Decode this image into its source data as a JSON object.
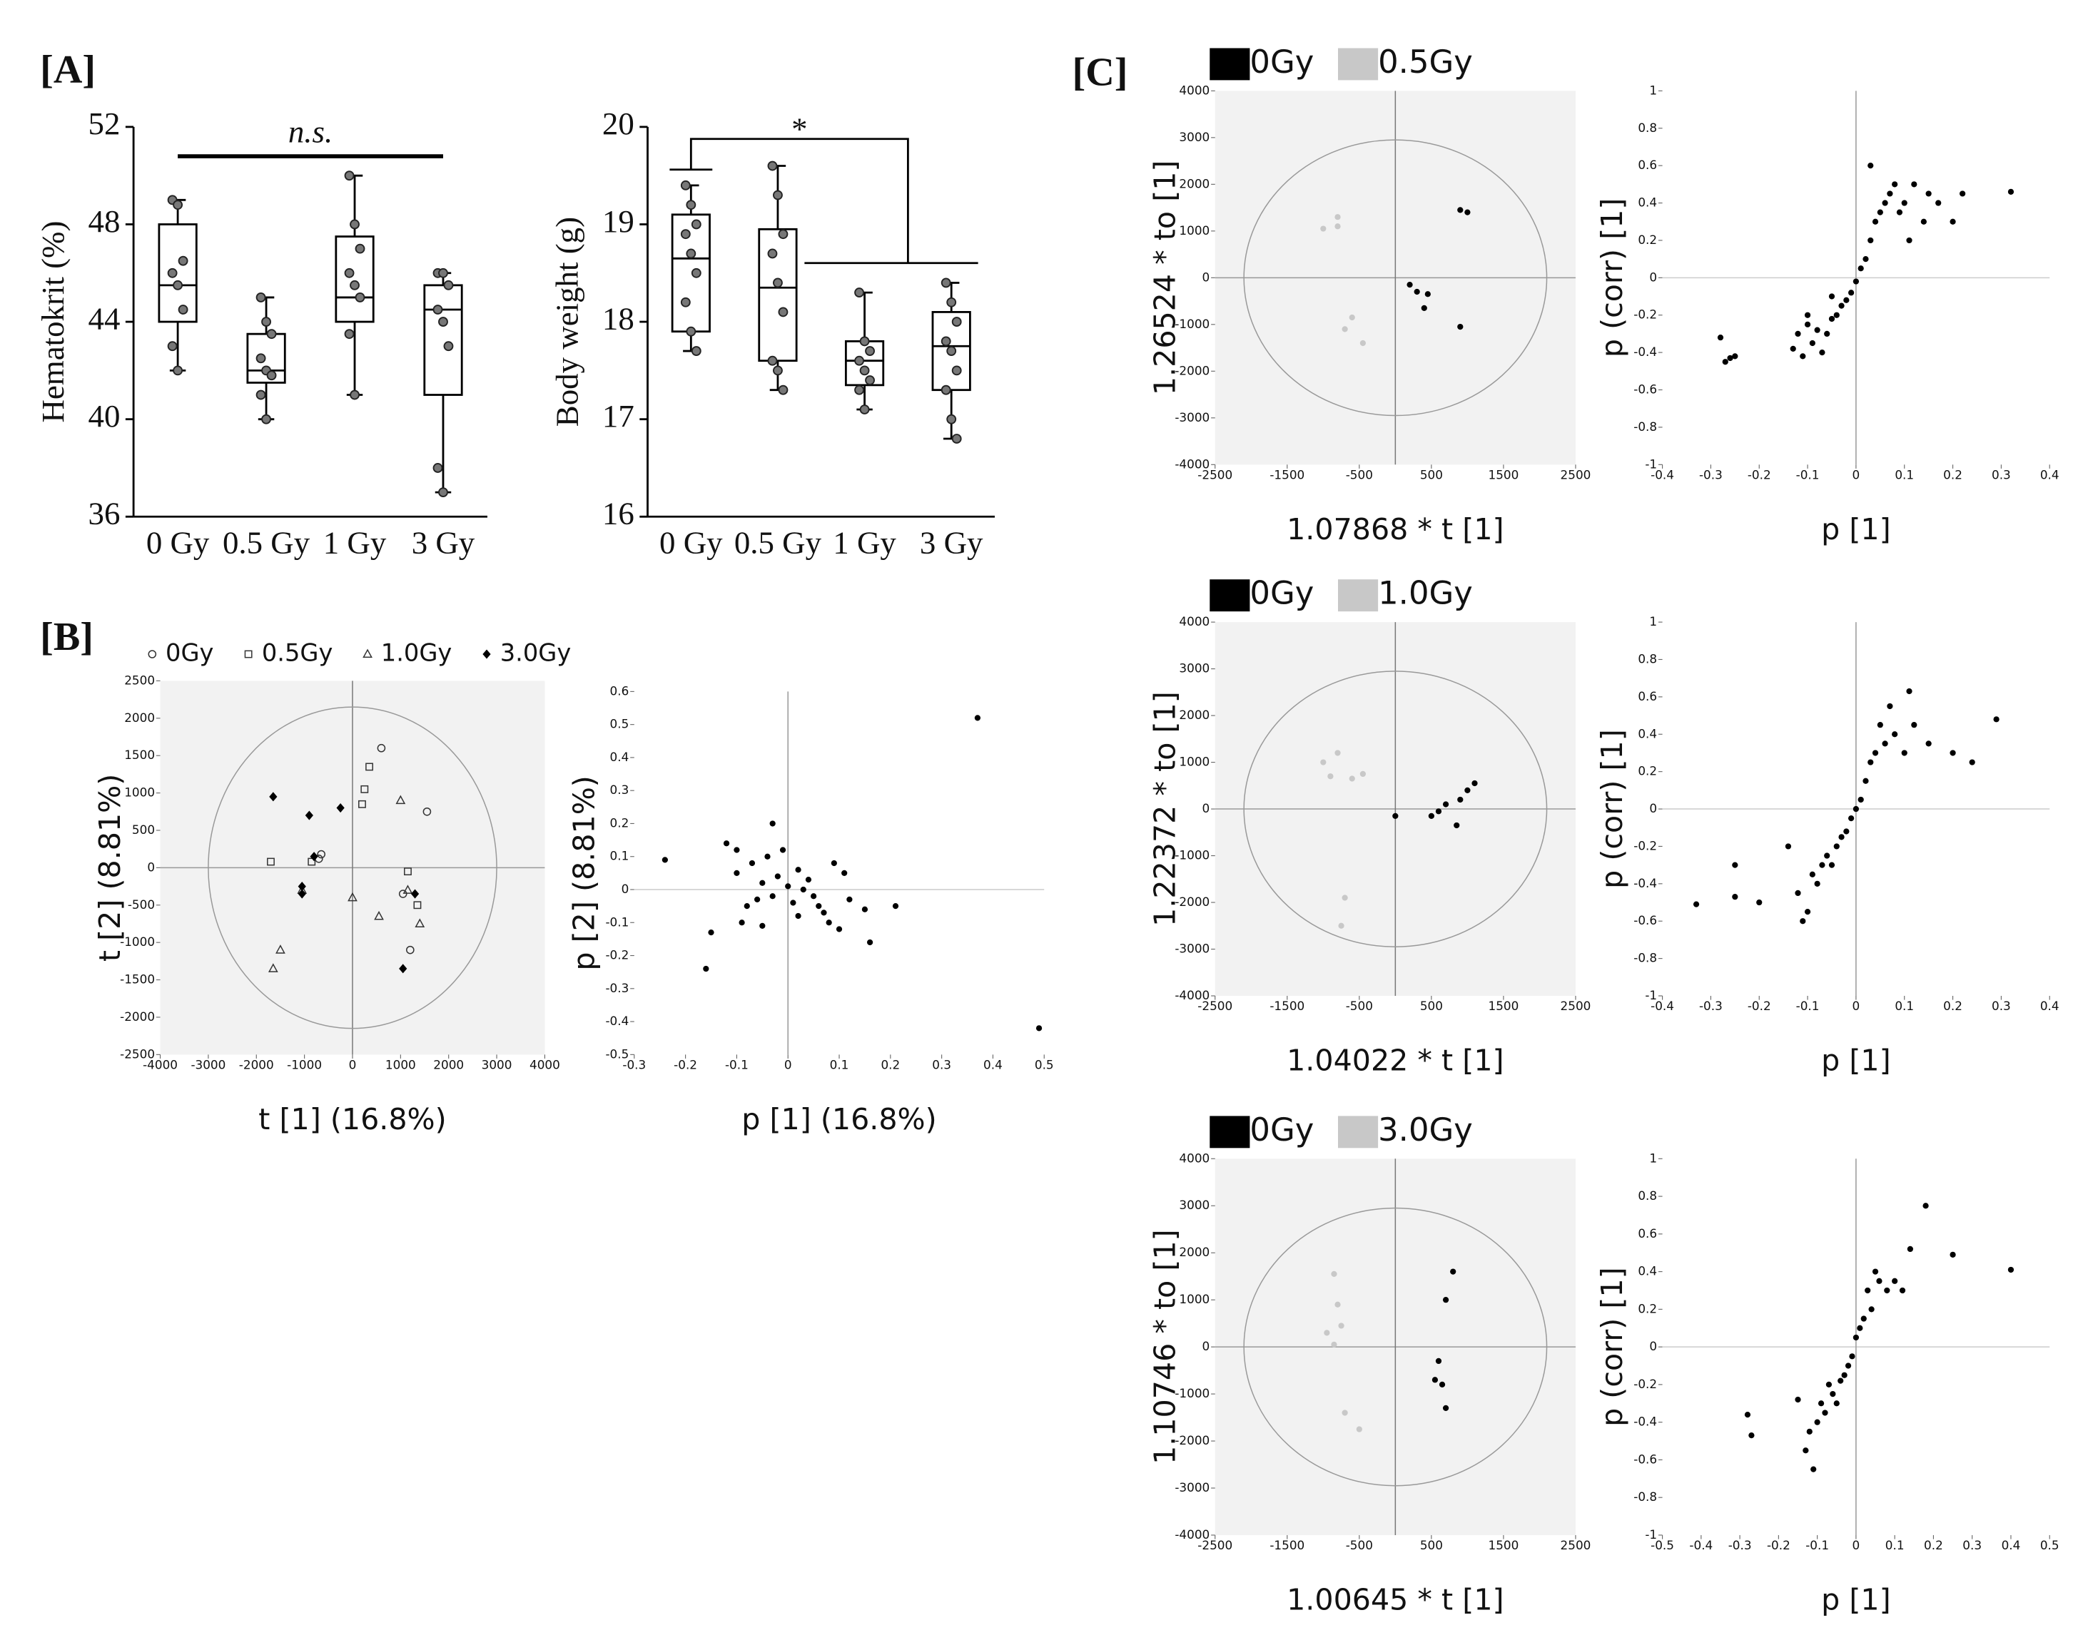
{
  "panel_labels": [
    "[A]",
    "[B]",
    "[C]"
  ],
  "chart_data": [
    {
      "type": "box",
      "ylabel": "Hematokrit (%)",
      "categories": [
        "0 Gy",
        "0.5 Gy",
        "1 Gy",
        "3 Gy"
      ],
      "ylim": [
        36,
        52
      ],
      "yticks": [
        36,
        40,
        44,
        48,
        52
      ],
      "annotation": "n.s.",
      "boxes": [
        {
          "min": 42,
          "q1": 44,
          "median": 45.5,
          "q3": 48,
          "max": 49,
          "points": [
            49,
            48.8,
            46.5,
            46,
            45.5,
            44.5,
            43,
            42
          ]
        },
        {
          "min": 40,
          "q1": 41.5,
          "median": 42,
          "q3": 43.5,
          "max": 45,
          "points": [
            45,
            44,
            43.5,
            42.5,
            42,
            41.8,
            41,
            40
          ]
        },
        {
          "min": 41,
          "q1": 44,
          "median": 45,
          "q3": 47.5,
          "max": 50,
          "points": [
            50,
            48,
            47,
            46,
            45.5,
            45,
            43.5,
            41
          ]
        },
        {
          "min": 37,
          "q1": 41,
          "median": 44.5,
          "q3": 45.5,
          "max": 46,
          "points": [
            46,
            46,
            45.5,
            44.5,
            44,
            43,
            38,
            37
          ]
        }
      ]
    },
    {
      "type": "box",
      "ylabel": "Body weight (g)",
      "categories": [
        "0 Gy",
        "0.5 Gy",
        "1 Gy",
        "3 Gy"
      ],
      "ylim": [
        16,
        20
      ],
      "yticks": [
        16,
        17,
        18,
        19,
        20
      ],
      "annotation": "*",
      "boxes": [
        {
          "min": 17.7,
          "q1": 17.9,
          "median": 18.65,
          "q3": 19.1,
          "max": 19.4,
          "points": [
            19.4,
            19.2,
            19.0,
            18.9,
            18.7,
            18.5,
            18.2,
            17.9,
            17.7
          ]
        },
        {
          "min": 17.3,
          "q1": 17.6,
          "median": 18.35,
          "q3": 18.95,
          "max": 19.6,
          "points": [
            19.6,
            19.3,
            18.9,
            18.7,
            18.4,
            18.1,
            17.6,
            17.5,
            17.3
          ]
        },
        {
          "min": 17.1,
          "q1": 17.35,
          "median": 17.6,
          "q3": 17.8,
          "max": 18.3,
          "points": [
            18.3,
            17.8,
            17.7,
            17.6,
            17.5,
            17.4,
            17.3,
            17.1
          ]
        },
        {
          "min": 16.8,
          "q1": 17.3,
          "median": 17.75,
          "q3": 18.1,
          "max": 18.4,
          "points": [
            18.4,
            18.2,
            18.0,
            17.8,
            17.7,
            17.5,
            17.3,
            17.0,
            16.8
          ]
        }
      ]
    },
    {
      "type": "scatter",
      "xlabel": "t [1] (16.8%)",
      "ylabel": "t [2] (8.81%)",
      "xlim": [
        -4000,
        4000
      ],
      "xticks": [
        -4000,
        -3000,
        -2000,
        -1000,
        0,
        1000,
        2000,
        3000,
        4000
      ],
      "ylim": [
        -2500,
        2500
      ],
      "yticks": [
        -2500,
        -2000,
        -1500,
        -1000,
        -500,
        0,
        500,
        1000,
        1500,
        2000,
        2500
      ],
      "background": "#f2f2f2",
      "zero_lines": true,
      "ellipse": [
        3000,
        2150
      ],
      "legend": "top-left",
      "series": [
        {
          "name": "0Gy",
          "color": "#333333",
          "marker": "circle",
          "x": [
            600,
            1550,
            -650,
            1050,
            1200,
            -700
          ],
          "y": [
            1600,
            750,
            180,
            -350,
            -1100,
            120
          ]
        },
        {
          "name": "0.5Gy",
          "color": "#333333",
          "marker": "square",
          "x": [
            350,
            250,
            200,
            -1700,
            -850,
            1150,
            1350
          ],
          "y": [
            1350,
            1050,
            850,
            80,
            80,
            -50,
            -500
          ]
        },
        {
          "name": "1.0Gy",
          "color": "#333333",
          "marker": "triangle",
          "x": [
            1000,
            1150,
            1400,
            -1500,
            -1650,
            550,
            0,
            -1050
          ],
          "y": [
            900,
            -300,
            -750,
            -1100,
            -1350,
            -650,
            -400,
            -300
          ]
        },
        {
          "name": "3.0Gy",
          "color": "#000000",
          "marker": "diamond",
          "x": [
            -1650,
            -900,
            -250,
            -800,
            -1050,
            -1050,
            1300,
            1050
          ],
          "y": [
            950,
            700,
            800,
            150,
            -250,
            -350,
            -350,
            -1350
          ]
        }
      ]
    },
    {
      "type": "scatter",
      "xlabel": "p [1] (16.8%)",
      "ylabel": "p [2] (8.81%)",
      "xlim": [
        -0.3,
        0.5
      ],
      "xticks": [
        -0.3,
        -0.2,
        -0.1,
        0,
        0.1,
        0.2,
        0.3,
        0.4,
        0.5
      ],
      "ylim": [
        -0.5,
        0.6
      ],
      "yticks": [
        -0.5,
        -0.4,
        -0.3,
        -0.2,
        -0.1,
        0,
        0.1,
        0.2,
        0.3,
        0.4,
        0.5,
        0.6
      ],
      "zero_lines": true,
      "color": "#000000",
      "x": [
        -0.24,
        -0.16,
        -0.15,
        -0.12,
        -0.1,
        -0.09,
        -0.08,
        -0.07,
        -0.06,
        -0.05,
        -0.04,
        -0.03,
        -0.02,
        -0.01,
        0,
        0.01,
        0.02,
        0.03,
        0.04,
        0.05,
        0.06,
        0.08,
        0.09,
        0.1,
        0.11,
        0.12,
        0.15,
        0.16,
        0.21,
        0.37,
        0.49,
        -0.03,
        0.02,
        -0.1,
        0.07,
        -0.05
      ],
      "y": [
        0.09,
        -0.24,
        -0.13,
        0.14,
        0.05,
        -0.1,
        -0.05,
        0.08,
        -0.03,
        0.02,
        0.1,
        -0.02,
        0.04,
        0.12,
        0.01,
        -0.04,
        0.06,
        0.0,
        0.03,
        -0.02,
        -0.05,
        -0.1,
        0.08,
        -0.12,
        0.05,
        -0.03,
        -0.06,
        -0.16,
        -0.05,
        0.52,
        -0.42,
        0.2,
        -0.08,
        0.12,
        -0.07,
        -0.11
      ]
    },
    {
      "type": "scatter",
      "xlabel": "1.07868 * t [1]",
      "ylabel": "1.26524 * to [1]",
      "xlim": [
        -2500,
        2500
      ],
      "xticks": [
        -2500,
        -1500,
        -500,
        500,
        1500,
        2500
      ],
      "ylim": [
        -4000,
        4000
      ],
      "yticks": [
        -4000,
        -3000,
        -2000,
        -1000,
        0,
        1000,
        2000,
        3000,
        4000
      ],
      "background": "#f2f2f2",
      "zero_lines": true,
      "ellipse": [
        2100,
        2950
      ],
      "legend": "top-left",
      "series": [
        {
          "name": "0Gy",
          "color": "#000000",
          "x": [
            900,
            1000,
            200,
            300,
            450,
            400,
            900
          ],
          "y": [
            1450,
            1400,
            -150,
            -300,
            -350,
            -650,
            -1050
          ]
        },
        {
          "name": "0.5Gy",
          "color": "#c8c8c8",
          "x": [
            -1000,
            -800,
            -800,
            -700,
            -600,
            -450
          ],
          "y": [
            1050,
            1100,
            1300,
            -1100,
            -850,
            -1400
          ]
        }
      ]
    },
    {
      "type": "scatter",
      "xlabel": "p [1]",
      "ylabel": "p (corr) [1]",
      "xlim": [
        -0.4,
        0.4
      ],
      "xticks": [
        -0.4,
        -0.3,
        -0.2,
        -0.1,
        0,
        0.1,
        0.2,
        0.3,
        0.4
      ],
      "ylim": [
        -1,
        1
      ],
      "yticks": [
        -1,
        -0.8,
        -0.6,
        -0.4,
        -0.2,
        0,
        0.2,
        0.4,
        0.6,
        0.8,
        1
      ],
      "zero_lines": true,
      "color": "#000000",
      "x": [
        -0.28,
        -0.27,
        -0.26,
        -0.25,
        -0.13,
        -0.12,
        -0.11,
        -0.1,
        -0.09,
        -0.08,
        -0.07,
        -0.06,
        -0.05,
        -0.04,
        -0.03,
        -0.02,
        -0.01,
        0,
        0.01,
        0.02,
        0.03,
        0.04,
        0.05,
        0.06,
        0.07,
        0.08,
        0.1,
        0.12,
        0.14,
        0.15,
        0.17,
        0.2,
        0.22,
        0.32,
        0.03,
        -0.05,
        -0.1,
        0.09,
        0.11
      ],
      "y": [
        -0.32,
        -0.45,
        -0.43,
        -0.42,
        -0.38,
        -0.3,
        -0.42,
        -0.25,
        -0.35,
        -0.28,
        -0.4,
        -0.3,
        -0.22,
        -0.2,
        -0.15,
        -0.12,
        -0.08,
        -0.02,
        0.05,
        0.1,
        0.2,
        0.3,
        0.35,
        0.4,
        0.45,
        0.5,
        0.4,
        0.5,
        0.3,
        0.45,
        0.4,
        0.3,
        0.45,
        0.46,
        0.6,
        -0.1,
        -0.2,
        0.35,
        0.2
      ]
    },
    {
      "type": "scatter",
      "xlabel": "1.04022 * t [1]",
      "ylabel": "1.22372 * to [1]",
      "xlim": [
        -2500,
        2500
      ],
      "xticks": [
        -2500,
        -1500,
        -500,
        500,
        1500,
        2500
      ],
      "ylim": [
        -4000,
        4000
      ],
      "yticks": [
        -4000,
        -3000,
        -2000,
        -1000,
        0,
        1000,
        2000,
        3000,
        4000
      ],
      "background": "#f2f2f2",
      "zero_lines": true,
      "ellipse": [
        2100,
        2950
      ],
      "legend": "top-left",
      "series": [
        {
          "name": "0Gy",
          "color": "#000000",
          "x": [
            0,
            500,
            600,
            700,
            900,
            1000,
            1100,
            850
          ],
          "y": [
            -150,
            -150,
            -50,
            100,
            200,
            400,
            550,
            -350
          ]
        },
        {
          "name": "1.0Gy",
          "color": "#c8c8c8",
          "x": [
            -1000,
            -900,
            -800,
            -600,
            -450,
            -700,
            -750
          ],
          "y": [
            1000,
            700,
            1200,
            650,
            750,
            -1900,
            -2500
          ]
        }
      ]
    },
    {
      "type": "scatter",
      "xlabel": "p [1]",
      "ylabel": "p (corr) [1]",
      "xlim": [
        -0.4,
        0.4
      ],
      "xticks": [
        -0.4,
        -0.3,
        -0.2,
        -0.1,
        0,
        0.1,
        0.2,
        0.3,
        0.4
      ],
      "ylim": [
        -1,
        1
      ],
      "yticks": [
        -1,
        -0.8,
        -0.6,
        -0.4,
        -0.2,
        0,
        0.2,
        0.4,
        0.6,
        0.8,
        1
      ],
      "zero_lines": true,
      "color": "#000000",
      "x": [
        -0.33,
        -0.25,
        -0.25,
        -0.2,
        -0.14,
        -0.12,
        -0.1,
        -0.09,
        -0.08,
        -0.07,
        -0.06,
        -0.05,
        -0.04,
        -0.03,
        -0.02,
        -0.01,
        0,
        0.01,
        0.02,
        0.03,
        0.04,
        0.05,
        0.06,
        0.08,
        0.1,
        0.12,
        0.15,
        0.2,
        0.24,
        0.29,
        0.11,
        -0.11,
        0.07
      ],
      "y": [
        -0.51,
        -0.3,
        -0.47,
        -0.5,
        -0.2,
        -0.45,
        -0.55,
        -0.35,
        -0.4,
        -0.3,
        -0.25,
        -0.3,
        -0.2,
        -0.15,
        -0.12,
        -0.05,
        0,
        0.05,
        0.15,
        0.25,
        0.3,
        0.45,
        0.35,
        0.4,
        0.3,
        0.45,
        0.35,
        0.3,
        0.25,
        0.48,
        0.63,
        -0.6,
        0.55
      ]
    },
    {
      "type": "scatter",
      "xlabel": "1.00645 * t [1]",
      "ylabel": "1.10746 * to [1]",
      "xlim": [
        -2500,
        2500
      ],
      "xticks": [
        -2500,
        -1500,
        -500,
        500,
        1500,
        2500
      ],
      "ylim": [
        -4000,
        4000
      ],
      "yticks": [
        -4000,
        -3000,
        -2000,
        -1000,
        0,
        1000,
        2000,
        3000,
        4000
      ],
      "background": "#f2f2f2",
      "zero_lines": true,
      "ellipse": [
        2100,
        2950
      ],
      "legend": "top-left",
      "series": [
        {
          "name": "0Gy",
          "color": "#000000",
          "x": [
            800,
            700,
            600,
            550,
            650,
            700
          ],
          "y": [
            1600,
            1000,
            -300,
            -700,
            -800,
            -1300
          ]
        },
        {
          "name": "3.0Gy",
          "color": "#c8c8c8",
          "x": [
            -850,
            -800,
            -750,
            -950,
            -850,
            -700,
            -500
          ],
          "y": [
            1550,
            900,
            450,
            300,
            50,
            -1400,
            -1750
          ]
        }
      ]
    },
    {
      "type": "scatter",
      "xlabel": "p [1]",
      "ylabel": "p (corr) [1]",
      "xlim": [
        -0.5,
        0.5
      ],
      "xticks": [
        -0.5,
        -0.4,
        -0.3,
        -0.2,
        -0.1,
        0,
        0.1,
        0.2,
        0.3,
        0.4,
        0.5
      ],
      "ylim": [
        -1,
        1
      ],
      "yticks": [
        -1,
        -0.8,
        -0.6,
        -0.4,
        -0.2,
        0,
        0.2,
        0.4,
        0.6,
        0.8,
        1
      ],
      "zero_lines": true,
      "color": "#000000",
      "x": [
        -0.28,
        -0.27,
        -0.15,
        -0.13,
        -0.12,
        -0.1,
        -0.09,
        -0.08,
        -0.07,
        -0.06,
        -0.05,
        -0.04,
        -0.03,
        -0.02,
        -0.01,
        0,
        0.01,
        0.02,
        0.03,
        0.04,
        0.05,
        0.06,
        0.08,
        0.1,
        0.12,
        0.14,
        0.18,
        0.25,
        0.4,
        -0.11
      ],
      "y": [
        -0.36,
        -0.47,
        -0.28,
        -0.55,
        -0.45,
        -0.4,
        -0.3,
        -0.35,
        -0.2,
        -0.25,
        -0.3,
        -0.18,
        -0.15,
        -0.1,
        -0.05,
        0.05,
        0.1,
        0.15,
        0.3,
        0.2,
        0.4,
        0.35,
        0.3,
        0.35,
        0.3,
        0.52,
        0.75,
        0.49,
        0.41,
        -0.65
      ]
    }
  ]
}
